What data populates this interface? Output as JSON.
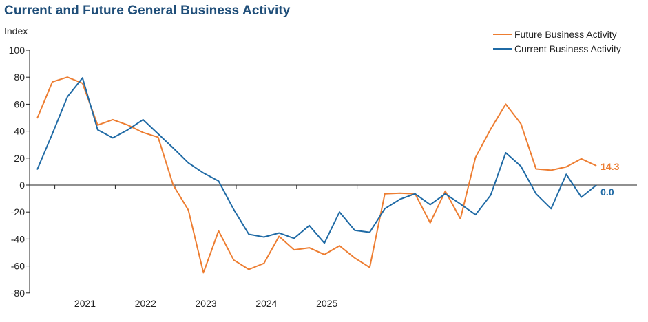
{
  "title": "Current and Future General Business Activity",
  "ylabel": "Index",
  "colors": {
    "future": "#ed7d31",
    "current": "#1f6aa5",
    "axis": "#222222"
  },
  "chart_data": {
    "type": "line",
    "title": "Current and Future General Business Activity",
    "xlabel": "",
    "ylabel": "Index",
    "ylim": [
      -80,
      100
    ],
    "yticks": [
      100,
      80,
      60,
      40,
      20,
      0,
      -20,
      -40,
      -60,
      -80
    ],
    "grid": false,
    "legend_position": "top-right",
    "x_start": "2020-08",
    "x_end": "2025-03",
    "year_labels": [
      "2021",
      "2022",
      "2023",
      "2024",
      "2025"
    ],
    "series": [
      {
        "name": "Future Business Activity",
        "color": "#ed7d31",
        "end_label": "14.3",
        "values": [
          49.5,
          76.5,
          80.0,
          75.5,
          44.5,
          48.5,
          44.5,
          39.0,
          35.5,
          0.0,
          -18.5,
          -65.0,
          -34.0,
          -55.5,
          -62.5,
          -58.0,
          -38.0,
          -48.0,
          -46.5,
          -51.5,
          -45.0,
          -54.0,
          -61.0,
          -6.5,
          -6.0,
          -6.5,
          -28.0,
          -4.5,
          -25.0,
          20.5,
          41.5,
          60.0,
          45.5,
          12.0,
          11.0,
          13.5,
          19.5,
          14.3
        ]
      },
      {
        "name": "Current Business Activity",
        "color": "#1f6aa5",
        "end_label": "0.0",
        "values": [
          11.5,
          38.0,
          65.5,
          79.5,
          41.0,
          35.0,
          41.0,
          48.5,
          38.0,
          27.5,
          16.5,
          9.0,
          3.0,
          -18.0,
          -36.5,
          -38.5,
          -35.5,
          -39.5,
          -30.0,
          -43.0,
          -20.0,
          -33.5,
          -35.0,
          -17.5,
          -10.5,
          -6.5,
          -14.5,
          -6.5,
          -14.0,
          -22.0,
          -7.5,
          24.0,
          14.0,
          -6.5,
          -17.5,
          8.0,
          -9.0,
          0.0
        ]
      }
    ]
  }
}
